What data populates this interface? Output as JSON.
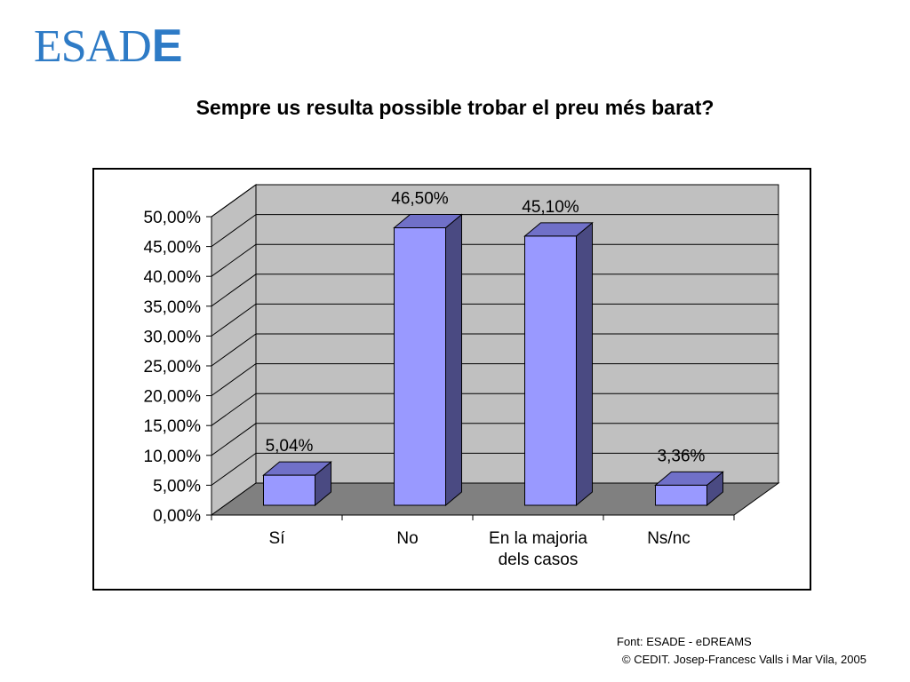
{
  "logo": {
    "text_main": "ESAD",
    "text_last": "E"
  },
  "title": "Sempre us resulta possible trobar el preu més barat?",
  "chart_data": {
    "type": "bar",
    "three_d": true,
    "categories": [
      "Sí",
      "No",
      "En la majoria dels casos",
      "Ns/nc"
    ],
    "category_lines": [
      [
        "Sí"
      ],
      [
        "No"
      ],
      [
        "En la majoria",
        "dels casos"
      ],
      [
        "Ns/nc"
      ]
    ],
    "values": [
      5.04,
      46.5,
      45.1,
      3.36
    ],
    "data_labels": [
      "5,04%",
      "46,50%",
      "45,10%",
      "3,36%"
    ],
    "ylim": [
      0,
      50
    ],
    "yticks": [
      "0,00%",
      "5,00%",
      "10,00%",
      "15,00%",
      "20,00%",
      "25,00%",
      "30,00%",
      "35,00%",
      "40,00%",
      "45,00%",
      "50,00%"
    ],
    "grid": true,
    "colors": {
      "bar_front": "#9999ff",
      "bar_side": "#4a4a82",
      "bar_top": "#7070c8",
      "back_wall": "#c0c0c0",
      "side_wall": "#c0c0c0",
      "floor": "#808080"
    }
  },
  "footer": {
    "source": "Font: ESADE - eDREAMS",
    "copyright": "© CEDIT. Josep-Francesc Valls i Mar Vila, 2005"
  }
}
